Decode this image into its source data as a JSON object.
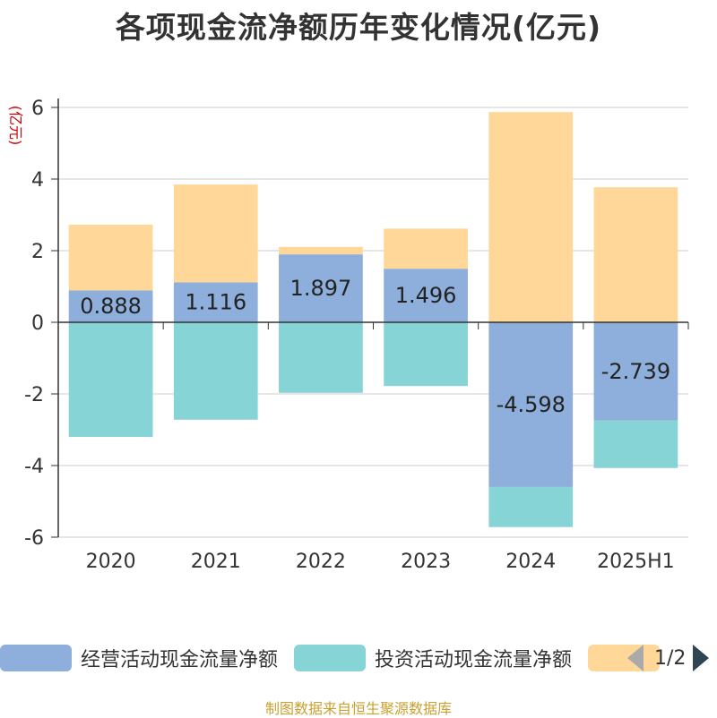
{
  "title": "各项现金流净额历年变化情况(亿元)",
  "source": "制图数据来自恒生聚源数据库",
  "pager": {
    "text": "1/2"
  },
  "colors": {
    "operating": "#8eaedb",
    "investing": "#86d4d6",
    "financing": "#ffd798",
    "axis": "#333333",
    "grid": "#cccccc",
    "unit": "#cc0000"
  },
  "chart_data": {
    "type": "bar",
    "stacked": true,
    "unit_label": "(亿元)",
    "categories": [
      "2020",
      "2021",
      "2022",
      "2023",
      "2024",
      "2025H1"
    ],
    "ylim": [
      -6,
      6
    ],
    "yticks": [
      6,
      4,
      2,
      0,
      -2,
      -4,
      -6
    ],
    "grid": true,
    "legend_position": "bottom",
    "series": [
      {
        "key": "operating",
        "name": "经营活动现金流量净额",
        "values": [
          0.888,
          1.116,
          1.897,
          1.496,
          -4.598,
          -2.739
        ],
        "labeled": true
      },
      {
        "key": "investing",
        "name": "投资活动现金流量净额",
        "values": [
          -3.2,
          -2.72,
          -1.97,
          -1.78,
          -1.12,
          -1.33
        ],
        "labeled": false
      },
      {
        "key": "financing",
        "name": "",
        "values": [
          1.84,
          2.73,
          0.21,
          1.12,
          5.87,
          3.77
        ],
        "labeled": false
      }
    ]
  }
}
